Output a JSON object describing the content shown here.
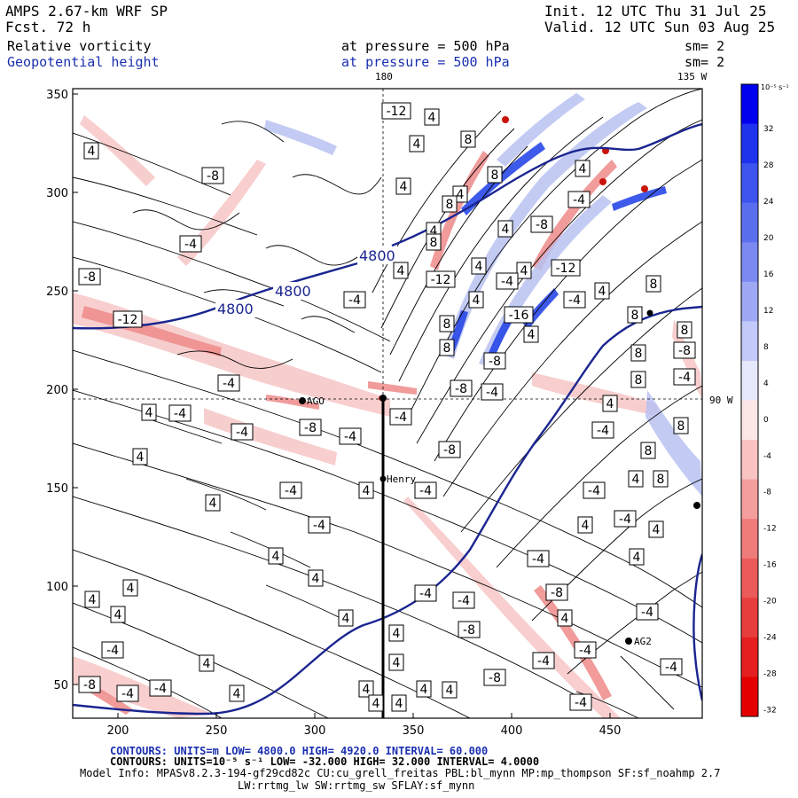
{
  "header": {
    "model": "AMPS 2.67-km WRF SP",
    "forecast": "Fcst.    72 h",
    "init": "Init. 12 UTC Thu 31 Jul 25",
    "valid": "Valid. 12 UTC Sun 03 Aug 25",
    "field1_name": "Relative vorticity",
    "field1_level": "at pressure =  500 hPa",
    "field1_smooth": "sm= 2",
    "field2_name": "Geopotential height",
    "field2_level": "at pressure =  500 hPa",
    "field2_smooth": "sm= 2"
  },
  "map": {
    "top_labels": [
      "180",
      "135 W"
    ],
    "right_label": "90 W",
    "x_ticks": [
      "200",
      "250",
      "300",
      "350",
      "400",
      "450"
    ],
    "y_ticks": [
      "350",
      "300",
      "250",
      "200",
      "150",
      "100",
      "50"
    ],
    "stations": [
      "AGO",
      "Henry",
      "AG2"
    ],
    "height_labels": [
      "4800",
      "4800",
      "4800"
    ],
    "colors": {
      "negative": "#e03030",
      "positive": "#2040e0",
      "height_contour": "#1a2590"
    }
  },
  "vorticity_labels": [
    {
      "v": "-12",
      "x": 447,
      "y": 125
    },
    {
      "v": "4",
      "x": 487,
      "y": 132
    },
    {
      "v": "4",
      "x": 103,
      "y": 170
    },
    {
      "v": "8",
      "x": 528,
      "y": 157
    },
    {
      "v": "4",
      "x": 470,
      "y": 162
    },
    {
      "v": "-8",
      "x": 240,
      "y": 198
    },
    {
      "v": "8",
      "x": 558,
      "y": 197
    },
    {
      "v": "4",
      "x": 455,
      "y": 210
    },
    {
      "v": "4",
      "x": 657,
      "y": 190
    },
    {
      "v": "4",
      "x": 519,
      "y": 219
    },
    {
      "v": "-4",
      "x": 653,
      "y": 225
    },
    {
      "v": "8",
      "x": 507,
      "y": 230
    },
    {
      "v": "4",
      "x": 489,
      "y": 260
    },
    {
      "v": "4",
      "x": 570,
      "y": 258
    },
    {
      "v": "-8",
      "x": 611,
      "y": 253
    },
    {
      "v": "-4",
      "x": 215,
      "y": 275
    },
    {
      "v": "8",
      "x": 489,
      "y": 273
    },
    {
      "v": "-12",
      "x": 638,
      "y": 302
    },
    {
      "v": "4",
      "x": 452,
      "y": 305
    },
    {
      "v": "4",
      "x": 540,
      "y": 300
    },
    {
      "v": "4",
      "x": 591,
      "y": 305
    },
    {
      "v": "-8",
      "x": 101,
      "y": 312
    },
    {
      "v": "-12",
      "x": 497,
      "y": 315
    },
    {
      "v": "-4",
      "x": 572,
      "y": 317
    },
    {
      "v": "8",
      "x": 737,
      "y": 320
    },
    {
      "v": "4",
      "x": 679,
      "y": 328
    },
    {
      "v": "-4",
      "x": 400,
      "y": 338
    },
    {
      "v": "4",
      "x": 537,
      "y": 338
    },
    {
      "v": "-4",
      "x": 648,
      "y": 338
    },
    {
      "v": "-12",
      "x": 144,
      "y": 360
    },
    {
      "v": "-16",
      "x": 585,
      "y": 355
    },
    {
      "v": "8",
      "x": 716,
      "y": 355
    },
    {
      "v": "4",
      "x": 599,
      "y": 377
    },
    {
      "v": "8",
      "x": 504,
      "y": 365
    },
    {
      "v": "8",
      "x": 504,
      "y": 392
    },
    {
      "v": "8",
      "x": 772,
      "y": 372
    },
    {
      "v": "-8",
      "x": 558,
      "y": 407
    },
    {
      "v": "8",
      "x": 720,
      "y": 398
    },
    {
      "v": "-8",
      "x": 772,
      "y": 395
    },
    {
      "v": "-4",
      "x": 258,
      "y": 432
    },
    {
      "v": "-8",
      "x": 520,
      "y": 438
    },
    {
      "v": "-4",
      "x": 555,
      "y": 442
    },
    {
      "v": "8",
      "x": 720,
      "y": 428
    },
    {
      "v": "-4",
      "x": 772,
      "y": 425
    },
    {
      "v": "4",
      "x": 168,
      "y": 465
    },
    {
      "v": "-4",
      "x": 203,
      "y": 466
    },
    {
      "v": "-4",
      "x": 452,
      "y": 470
    },
    {
      "v": "4",
      "x": 688,
      "y": 455
    },
    {
      "v": "8",
      "x": 768,
      "y": 480
    },
    {
      "v": "-8",
      "x": 350,
      "y": 482
    },
    {
      "v": "-4",
      "x": 273,
      "y": 487
    },
    {
      "v": "-4",
      "x": 395,
      "y": 492
    },
    {
      "v": "-4",
      "x": 680,
      "y": 485
    },
    {
      "v": "8",
      "x": 731,
      "y": 508
    },
    {
      "v": "-8",
      "x": 507,
      "y": 507
    },
    {
      "v": "4",
      "x": 158,
      "y": 515
    },
    {
      "v": "4",
      "x": 717,
      "y": 540
    },
    {
      "v": "8",
      "x": 745,
      "y": 540
    },
    {
      "v": "-4",
      "x": 328,
      "y": 553
    },
    {
      "v": "-4",
      "x": 480,
      "y": 553
    },
    {
      "v": "4",
      "x": 413,
      "y": 553
    },
    {
      "v": "-4",
      "x": 670,
      "y": 553
    },
    {
      "v": "4",
      "x": 240,
      "y": 567
    },
    {
      "v": "-4",
      "x": 705,
      "y": 585
    },
    {
      "v": "-4",
      "x": 360,
      "y": 592
    },
    {
      "v": "4",
      "x": 660,
      "y": 592
    },
    {
      "v": "4",
      "x": 740,
      "y": 597
    },
    {
      "v": "4",
      "x": 311,
      "y": 627
    },
    {
      "v": "-4",
      "x": 607,
      "y": 630
    },
    {
      "v": "4",
      "x": 718,
      "y": 628
    },
    {
      "v": "4",
      "x": 147,
      "y": 663
    },
    {
      "v": "4",
      "x": 104,
      "y": 676
    },
    {
      "v": "4",
      "x": 356,
      "y": 652
    },
    {
      "v": "-4",
      "x": 480,
      "y": 669
    },
    {
      "v": "-4",
      "x": 523,
      "y": 677
    },
    {
      "v": "-8",
      "x": 628,
      "y": 668
    },
    {
      "v": "4",
      "x": 637,
      "y": 697
    },
    {
      "v": "-4",
      "x": 730,
      "y": 690
    },
    {
      "v": "4",
      "x": 133,
      "y": 693
    },
    {
      "v": "4",
      "x": 390,
      "y": 697
    },
    {
      "v": "-8",
      "x": 529,
      "y": 710
    },
    {
      "v": "4",
      "x": 447,
      "y": 714
    },
    {
      "v": "-4",
      "x": 127,
      "y": 733
    },
    {
      "v": "4",
      "x": 233,
      "y": 748
    },
    {
      "v": "4",
      "x": 447,
      "y": 747
    },
    {
      "v": "-4",
      "x": 660,
      "y": 733
    },
    {
      "v": "-4",
      "x": 613,
      "y": 745
    },
    {
      "v": "-4",
      "x": 757,
      "y": 752
    },
    {
      "v": "-8",
      "x": 558,
      "y": 764
    },
    {
      "v": "-8",
      "x": 101,
      "y": 772
    },
    {
      "v": "-4",
      "x": 181,
      "y": 776
    },
    {
      "v": "-4",
      "x": 144,
      "y": 782
    },
    {
      "v": "4",
      "x": 267,
      "y": 782
    },
    {
      "v": "4",
      "x": 413,
      "y": 777
    },
    {
      "v": "4",
      "x": 478,
      "y": 777
    },
    {
      "v": "4",
      "x": 507,
      "y": 778
    },
    {
      "v": "4",
      "x": 424,
      "y": 793
    },
    {
      "v": "4",
      "x": 450,
      "y": 793
    },
    {
      "v": "-4",
      "x": 655,
      "y": 792
    }
  ],
  "colorbar": {
    "unit": "10⁻⁵ s⁻¹",
    "labels": [
      "32",
      "28",
      "24",
      "20",
      "16",
      "12",
      "8",
      "4",
      "0",
      "-4",
      "-8",
      "-12",
      "-16",
      "-20",
      "-24",
      "-28",
      "-32"
    ]
  },
  "footer": {
    "line1": "CONTOURS:  UNITS=m  LOW=  4800.0           HIGH=  4920.0          INTERVAL=   60.000",
    "line2": "CONTOURS:  UNITS=10⁻⁵ s⁻¹  LOW=  -32.000          HIGH=  32.000         INTERVAL=   4.0000",
    "line3": "Model Info: MPASv8.2.3-194-gf29cd82c CU:cu_grell_freitas PBL:bl_mynn MP:mp_thompson SF:sf_noahmp 2.7",
    "line4": "LW:rrtmg_lw SW:rrtmg_sw SFLAY:sf_mynn"
  }
}
